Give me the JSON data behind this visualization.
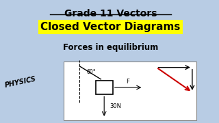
{
  "title1": "Grade 11 Vectors",
  "title2": "Closed Vector Diagrams",
  "title3": "Forces in equilibrium",
  "bg_color": "#b8cce4",
  "title2_bg": "#ffff00",
  "title1_color": "#000000",
  "title2_color": "#000000",
  "title3_color": "#000000",
  "diagram_bg": "#ffffff",
  "angle_label": "60°",
  "force_label": "F",
  "weight_label": "30N",
  "red_color": "#cc0000"
}
